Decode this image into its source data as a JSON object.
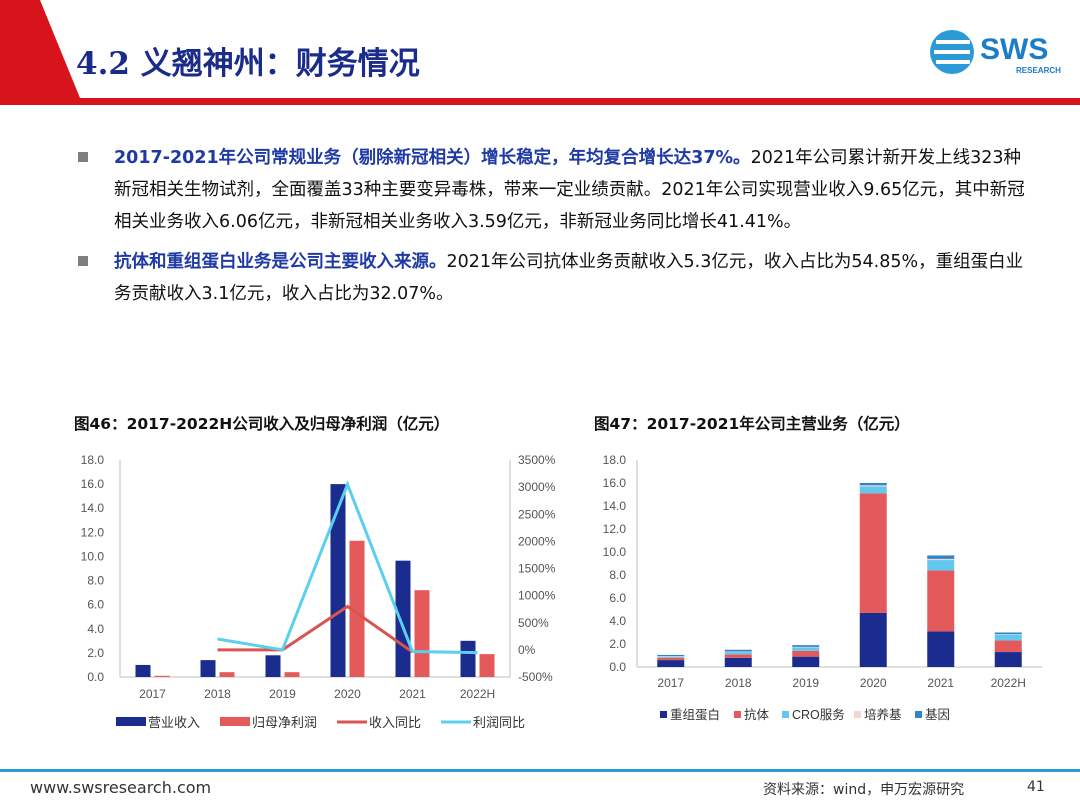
{
  "page": {
    "title": "4.2 义翘神州：财务情况",
    "logo": {
      "name": "SWS",
      "sub": "RESEARCH"
    },
    "bullets": [
      {
        "highlight": "2017-2021年公司常规业务（剔除新冠相关）增长稳定，年均复合增长达37%。",
        "text": "2021年公司累计新开发上线323种新冠相关生物试剂，全面覆盖33种主要变异毒株，带来一定业绩贡献。2021年公司实现营业收入9.65亿元，其中新冠相关业务收入6.06亿元，非新冠相关业务收入3.59亿元，非新冠业务同比增长41.41%。"
      },
      {
        "highlight": "抗体和重组蛋白业务是公司主要收入来源。",
        "text": "2021年公司抗体业务贡献收入5.3亿元，收入占比为54.85%，重组蛋白业务贡献收入3.1亿元，收入占比为32.07%。"
      }
    ],
    "footer": {
      "url": "www.swsresearch.com",
      "source": "资料来源：wind，申万宏源研究",
      "page_number": "41"
    }
  },
  "chart_data": [
    {
      "type": "bar",
      "title": "图46：2017-2022H公司收入及归母净利润（亿元）",
      "categories": [
        "2017",
        "2018",
        "2019",
        "2020",
        "2021",
        "2022H"
      ],
      "ylim": [
        0,
        18
      ],
      "yticks": [
        "0.0",
        "2.0",
        "4.0",
        "6.0",
        "8.0",
        "10.0",
        "12.0",
        "14.0",
        "16.0",
        "18.0"
      ],
      "y2lim": [
        -500,
        3500
      ],
      "y2ticks": [
        "-500%",
        "0%",
        "500%",
        "1000%",
        "1500%",
        "2000%",
        "2500%",
        "3000%",
        "3500%"
      ],
      "series": [
        {
          "name": "营业收入",
          "kind": "bar",
          "axis": "left",
          "color": "#1a2d8f",
          "values": [
            1.0,
            1.4,
            1.8,
            16.0,
            9.65,
            3.0
          ]
        },
        {
          "name": "归母净利润",
          "kind": "bar",
          "axis": "left",
          "color": "#e45a5a",
          "values": [
            0.1,
            0.4,
            0.4,
            11.3,
            7.2,
            1.9
          ]
        },
        {
          "name": "收入同比",
          "kind": "line",
          "axis": "right",
          "color": "#d9534f",
          "values": [
            null,
            0,
            0,
            800,
            -40,
            null
          ]
        },
        {
          "name": "利润同比",
          "kind": "line",
          "axis": "right",
          "color": "#5bcff0",
          "values": [
            null,
            200,
            0,
            3050,
            -30,
            -50
          ]
        }
      ]
    },
    {
      "type": "bar",
      "title": "图47：2017-2021年公司主营业务（亿元）",
      "stacked": true,
      "categories": [
        "2017",
        "2018",
        "2019",
        "2020",
        "2021",
        "2022H"
      ],
      "ylim": [
        0,
        18
      ],
      "yticks": [
        "0.0",
        "2.0",
        "4.0",
        "6.0",
        "8.0",
        "10.0",
        "12.0",
        "14.0",
        "16.0",
        "18.0"
      ],
      "series": [
        {
          "name": "重组蛋白",
          "color": "#1a2d8f",
          "values": [
            0.6,
            0.8,
            0.9,
            4.7,
            3.1,
            1.3
          ]
        },
        {
          "name": "抗体",
          "color": "#e45a5a",
          "values": [
            0.2,
            0.3,
            0.5,
            10.4,
            5.3,
            1.0
          ]
        },
        {
          "name": "CRO服务",
          "color": "#62c8ef",
          "values": [
            0.1,
            0.2,
            0.3,
            0.6,
            0.9,
            0.5
          ]
        },
        {
          "name": "培养基",
          "color": "#f9d2d2",
          "values": [
            0.05,
            0.05,
            0.05,
            0.1,
            0.1,
            0.05
          ]
        },
        {
          "name": "基因",
          "color": "#2e86c8",
          "values": [
            0.1,
            0.15,
            0.15,
            0.2,
            0.3,
            0.15
          ]
        }
      ]
    }
  ]
}
